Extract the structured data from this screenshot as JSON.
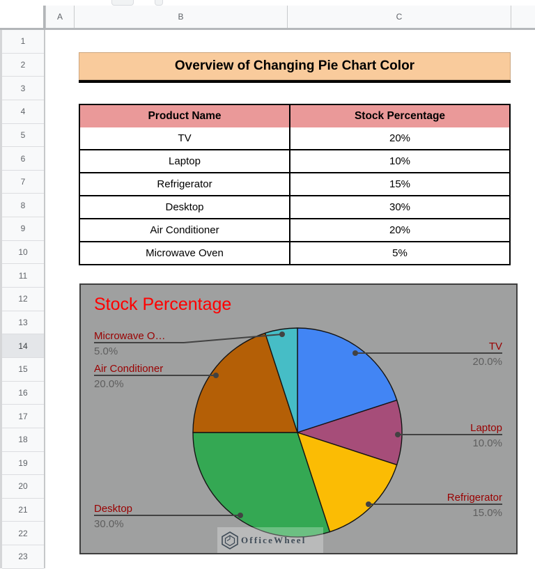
{
  "spreadsheet": {
    "column_headers": [
      "A",
      "B",
      "C"
    ],
    "row_numbers": [
      "1",
      "2",
      "3",
      "4",
      "5",
      "6",
      "7",
      "8",
      "9",
      "10",
      "11",
      "12",
      "13",
      "14",
      "15",
      "16",
      "17",
      "18",
      "19",
      "20",
      "21",
      "22",
      "23"
    ],
    "selected_row": "14",
    "title_banner": {
      "text": "Overview of Changing Pie Chart Color",
      "bg": "#f9cb9c"
    },
    "table": {
      "headers": [
        "Product Name",
        "Stock Percentage"
      ],
      "header_bg": "#ea9999",
      "rows": [
        {
          "product": "TV",
          "stock": "20%"
        },
        {
          "product": "Laptop",
          "stock": "10%"
        },
        {
          "product": "Refrigerator",
          "stock": "15%"
        },
        {
          "product": "Desktop",
          "stock": "30%"
        },
        {
          "product": "Air Conditioner",
          "stock": "20%"
        },
        {
          "product": "Microwave Oven",
          "stock": "5%"
        }
      ]
    }
  },
  "chart_data": {
    "type": "pie",
    "title": "Stock Percentage",
    "title_color": "#ff0000",
    "background": "#9fa0a0",
    "categories": [
      "TV",
      "Laptop",
      "Refrigerator",
      "Desktop",
      "Air Conditioner",
      "Microwave Oven"
    ],
    "values": [
      20,
      10,
      15,
      30,
      20,
      5
    ],
    "colors": [
      "#4285f4",
      "#a64d79",
      "#fbbc04",
      "#34a853",
      "#b45f06",
      "#46bdc6"
    ],
    "start_angle_deg": 0,
    "direction": "clockwise",
    "label_name_color": "#990000",
    "label_pct_color": "#5e5e5e",
    "labels": [
      {
        "name": "Microwave O…",
        "pct": "5.0%",
        "side": "left"
      },
      {
        "name": "Air Conditioner",
        "pct": "20.0%",
        "side": "left"
      },
      {
        "name": "Desktop",
        "pct": "30.0%",
        "side": "left"
      },
      {
        "name": "TV",
        "pct": "20.0%",
        "side": "right"
      },
      {
        "name": "Laptop",
        "pct": "10.0%",
        "side": "right"
      },
      {
        "name": "Refrigerator",
        "pct": "15.0%",
        "side": "right"
      }
    ]
  },
  "watermark": {
    "text": "OfficeWheel"
  }
}
